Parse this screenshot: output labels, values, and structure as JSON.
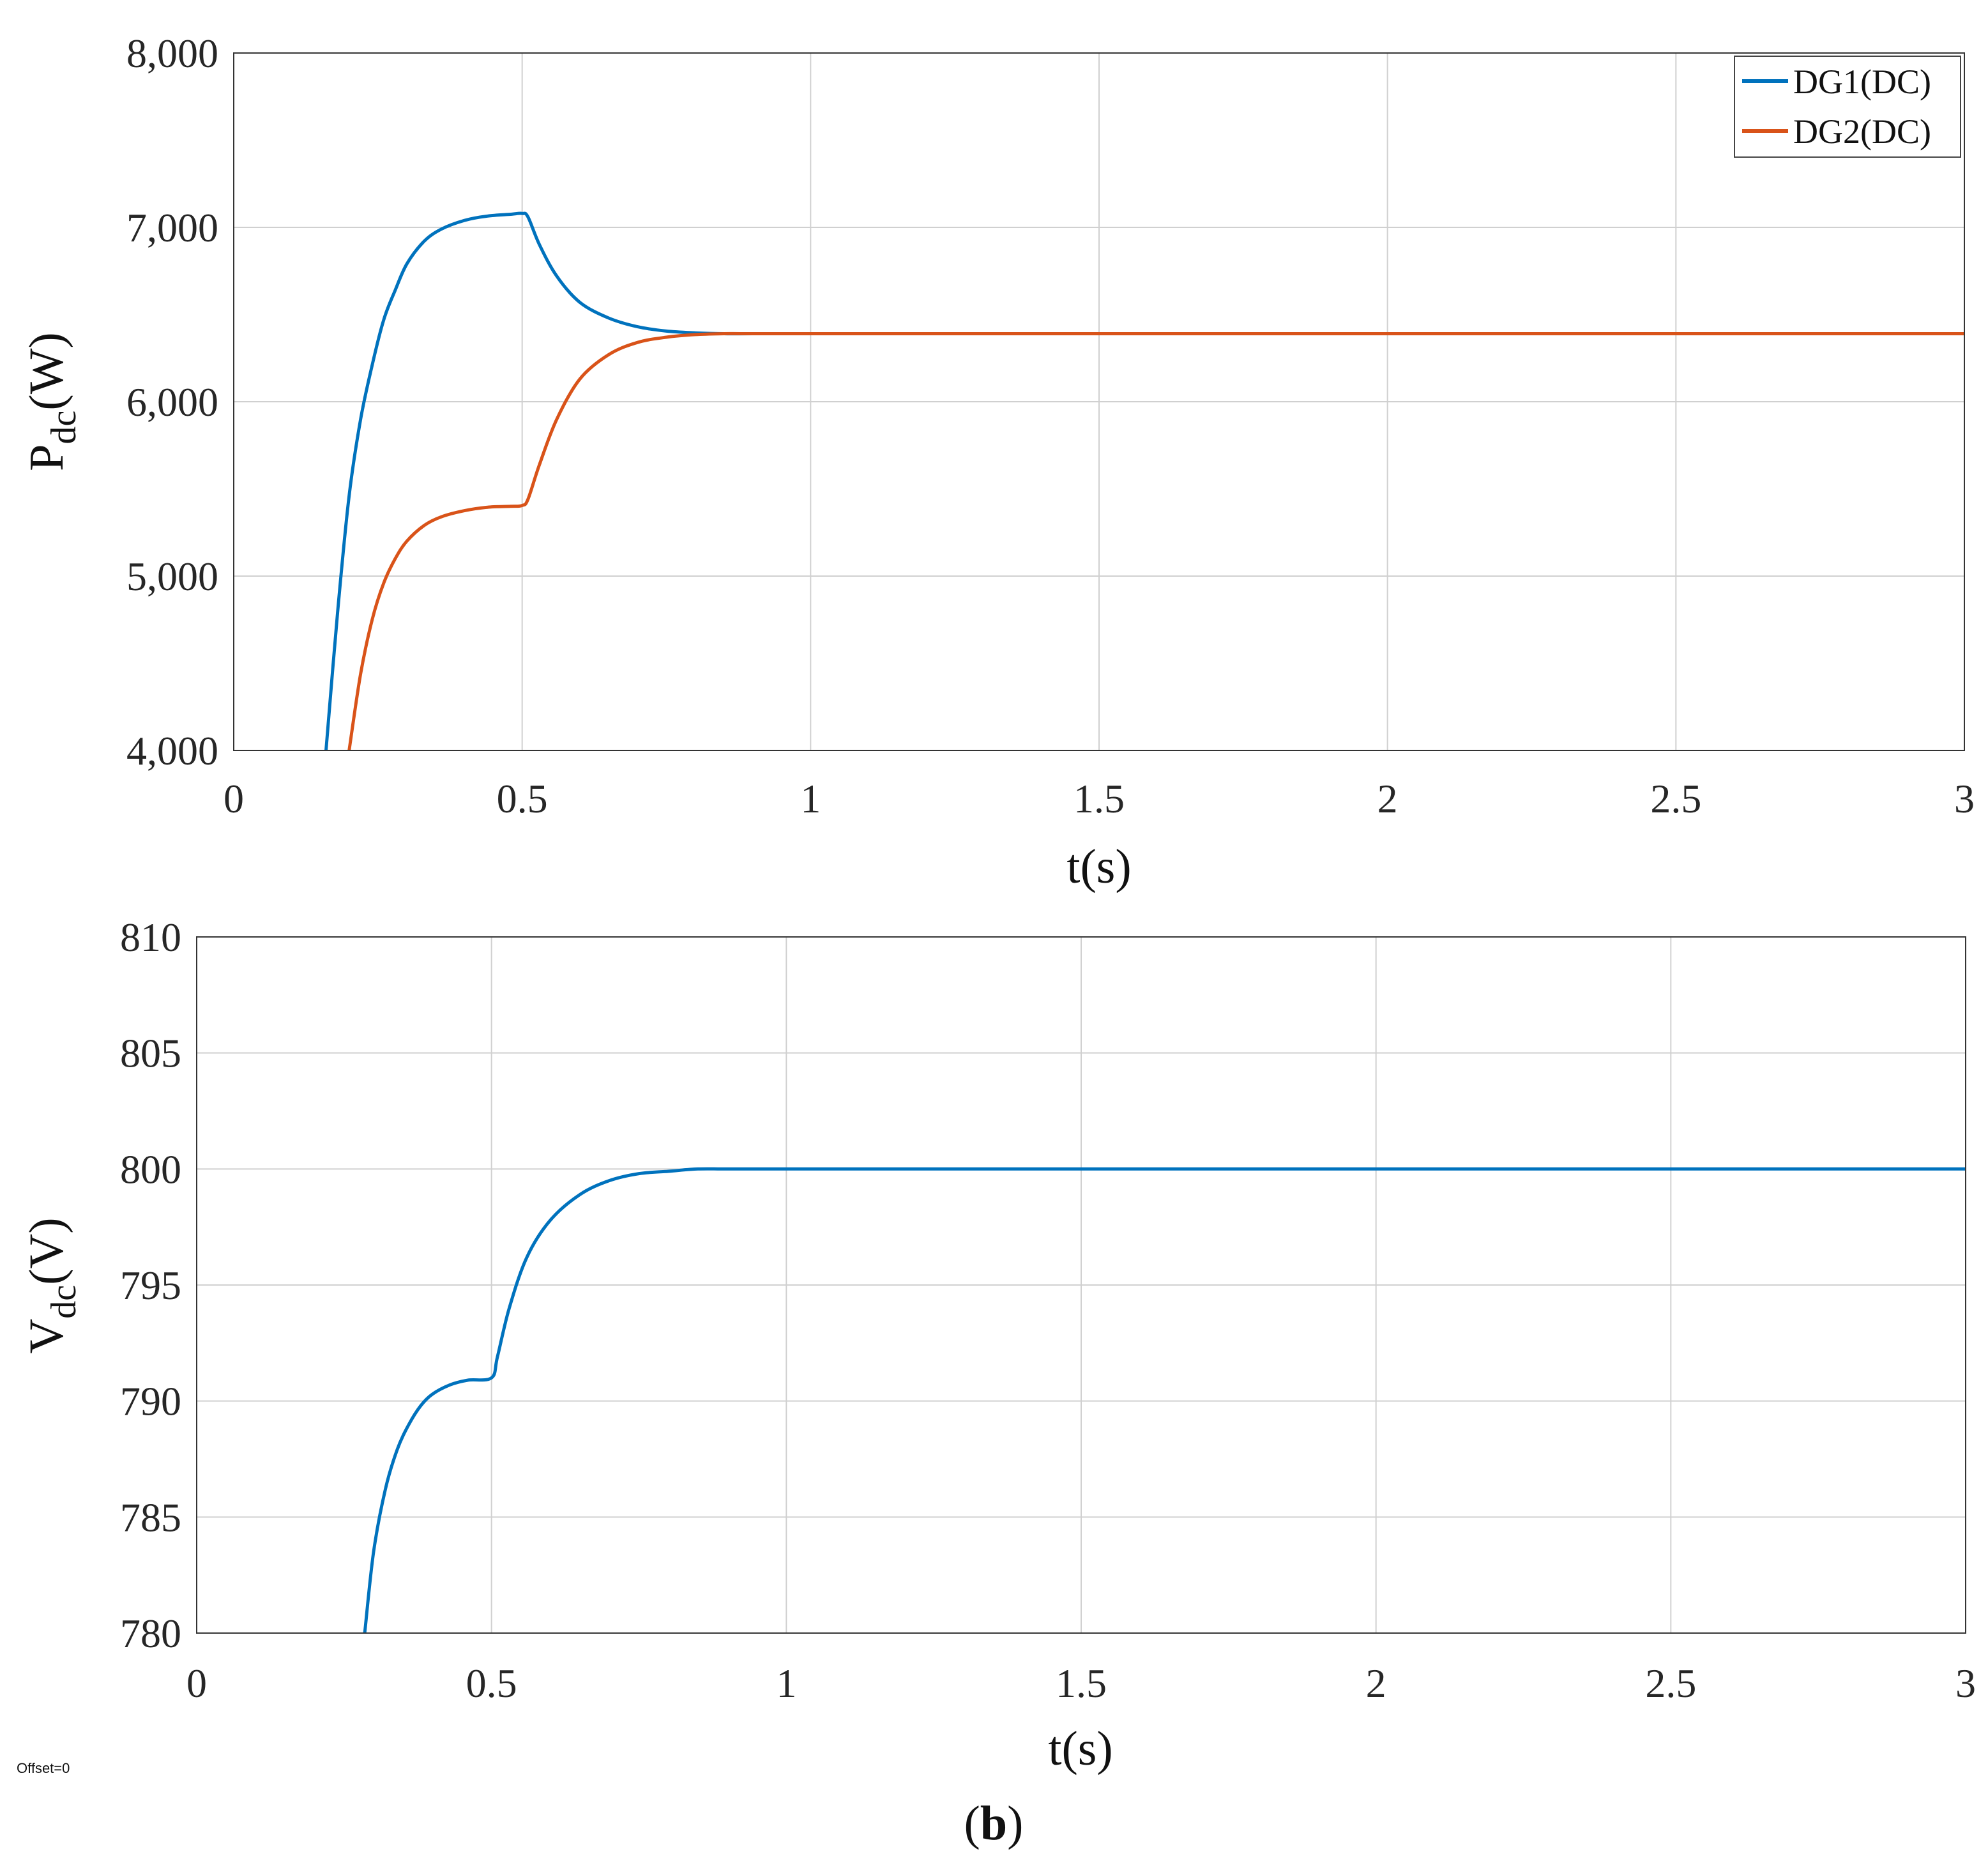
{
  "panel_label": {
    "open": "(",
    "letter": "b",
    "close": ")"
  },
  "offset_note": "Offset=0",
  "chart_data": [
    {
      "type": "line",
      "ylabel_main": "P",
      "ylabel_sub": "dc",
      "ylabel_unit": "(W)",
      "xlabel": "t(s)",
      "xlim": [
        0,
        3
      ],
      "ylim": [
        4000,
        8000
      ],
      "xticks": [
        0,
        0.5,
        1,
        1.5,
        2,
        2.5,
        3
      ],
      "xtick_labels": [
        "0",
        "0.5",
        "1",
        "1.5",
        "2",
        "2.5",
        "3"
      ],
      "yticks": [
        4000,
        5000,
        6000,
        7000,
        8000
      ],
      "ytick_labels": [
        "4,000",
        "5,000",
        "6,000",
        "7,000",
        "8,000"
      ],
      "grid": true,
      "legend_position": "top-right",
      "series": [
        {
          "name": "DG1(DC)",
          "color": "#0072BD",
          "x": [
            0.16,
            0.18,
            0.2,
            0.22,
            0.24,
            0.26,
            0.28,
            0.3,
            0.33,
            0.36,
            0.4,
            0.44,
            0.48,
            0.5,
            0.51,
            0.53,
            0.56,
            0.6,
            0.65,
            0.7,
            0.75,
            0.8,
            0.85,
            0.9,
            1.0,
            1.5,
            2.0,
            2.5,
            3.0
          ],
          "y": [
            4000,
            4790,
            5460,
            5900,
            6210,
            6470,
            6640,
            6790,
            6920,
            6990,
            7040,
            7065,
            7075,
            7080,
            7060,
            6900,
            6720,
            6570,
            6480,
            6430,
            6405,
            6395,
            6390,
            6390,
            6390,
            6390,
            6390,
            6390,
            6390
          ]
        },
        {
          "name": "DG2(DC)",
          "color": "#D95319",
          "x": [
            0.2,
            0.22,
            0.24,
            0.26,
            0.28,
            0.3,
            0.33,
            0.36,
            0.4,
            0.44,
            0.48,
            0.5,
            0.51,
            0.53,
            0.56,
            0.6,
            0.65,
            0.7,
            0.75,
            0.8,
            0.85,
            0.9,
            1.0,
            1.5,
            2.0,
            2.5,
            3.0
          ],
          "y": [
            4000,
            4440,
            4750,
            4960,
            5100,
            5200,
            5290,
            5340,
            5375,
            5395,
            5400,
            5405,
            5440,
            5640,
            5900,
            6130,
            6270,
            6340,
            6370,
            6385,
            6390,
            6390,
            6390,
            6390,
            6390,
            6390,
            6390
          ]
        }
      ]
    },
    {
      "type": "line",
      "ylabel_main": "V",
      "ylabel_sub": "dc",
      "ylabel_unit": "(V)",
      "xlabel": "t(s)",
      "xlim": [
        0,
        3
      ],
      "ylim": [
        780,
        810
      ],
      "xticks": [
        0,
        0.5,
        1,
        1.5,
        2,
        2.5,
        3
      ],
      "xtick_labels": [
        "0",
        "0.5",
        "1",
        "1.5",
        "2",
        "2.5",
        "3"
      ],
      "yticks": [
        780,
        785,
        790,
        795,
        800,
        805,
        810
      ],
      "ytick_labels": [
        "780",
        "785",
        "790",
        "795",
        "800",
        "805",
        "810"
      ],
      "grid": true,
      "series": [
        {
          "color": "#0072BD",
          "x": [
            0.285,
            0.3,
            0.32,
            0.34,
            0.36,
            0.38,
            0.4,
            0.43,
            0.46,
            0.5,
            0.51,
            0.53,
            0.56,
            0.6,
            0.65,
            0.7,
            0.75,
            0.8,
            0.85,
            0.9,
            1.0,
            1.5,
            2.0,
            2.5,
            3.0
          ],
          "y": [
            780,
            783.5,
            786.2,
            787.9,
            789.0,
            789.8,
            790.3,
            790.7,
            790.9,
            791.0,
            791.9,
            794.0,
            796.2,
            797.8,
            798.9,
            799.5,
            799.8,
            799.9,
            800.0,
            800.0,
            800.0,
            800.0,
            800.0,
            800.0,
            800.0
          ]
        }
      ]
    }
  ]
}
